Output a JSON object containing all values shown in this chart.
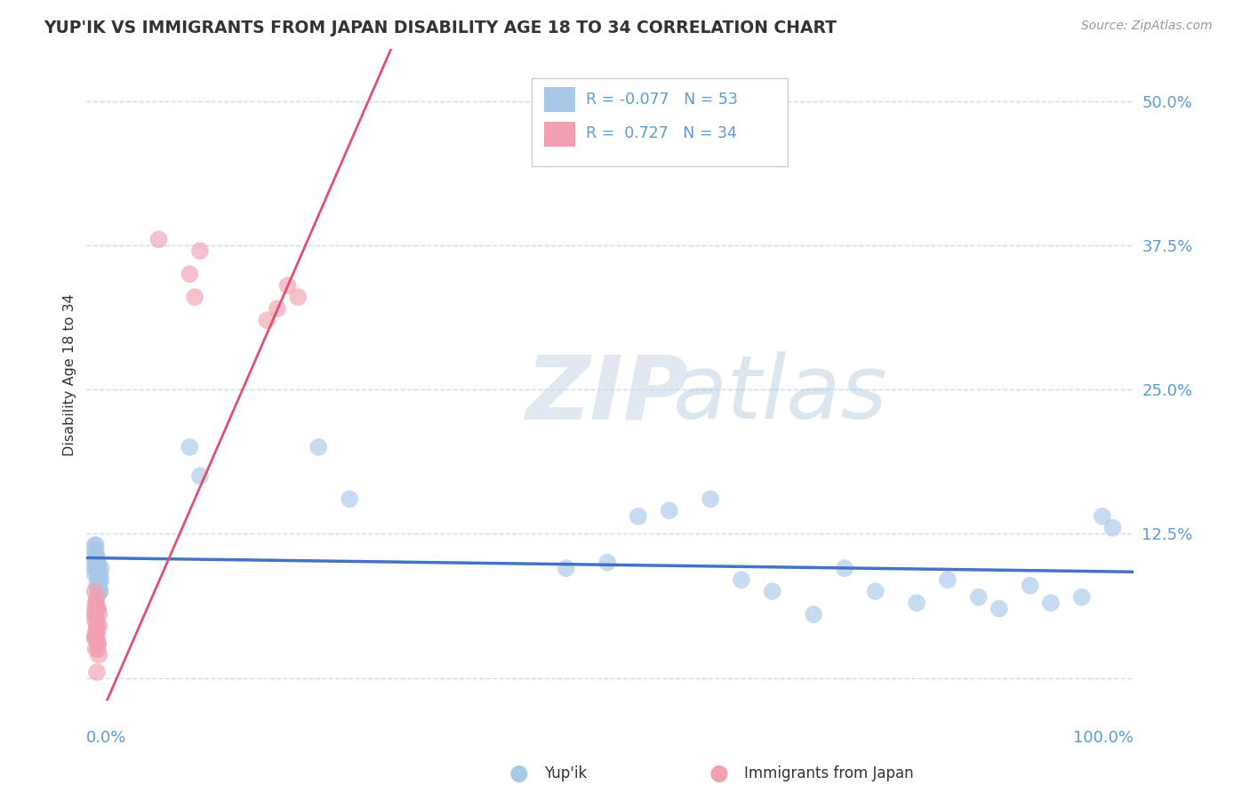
{
  "title": "YUP'IK VS IMMIGRANTS FROM JAPAN DISABILITY AGE 18 TO 34 CORRELATION CHART",
  "source": "Source: ZipAtlas.com",
  "ylabel": "Disability Age 18 to 34",
  "ytick_values": [
    0.0,
    0.125,
    0.25,
    0.375,
    0.5
  ],
  "xlim": [
    -0.005,
    1.01
  ],
  "ylim": [
    -0.02,
    0.545
  ],
  "color_blue": "#a8c8e8",
  "color_pink": "#f0a0b0",
  "line_blue": "#4472c4",
  "line_pink": "#e05070",
  "title_color": "#333333",
  "axis_color": "#5b9bd5",
  "grid_color": "#d0dce8",
  "background_color": "#ffffff",
  "slope_blue": -0.012,
  "intercept_blue": 0.104,
  "slope_pink": 2.05,
  "intercept_pink": -0.05,
  "yupik_x": [
    0.003,
    0.005,
    0.007,
    0.004,
    0.008,
    0.006,
    0.005,
    0.009,
    0.003,
    0.006,
    0.004,
    0.007,
    0.005,
    0.003,
    0.008,
    0.006,
    0.004,
    0.007,
    0.005,
    0.003,
    0.006,
    0.004,
    0.008,
    0.005,
    0.003,
    0.007,
    0.006,
    0.004,
    0.009,
    0.005,
    0.095,
    0.105,
    0.22,
    0.25,
    0.46,
    0.5,
    0.53,
    0.56,
    0.6,
    0.63,
    0.66,
    0.7,
    0.73,
    0.76,
    0.8,
    0.83,
    0.86,
    0.88,
    0.91,
    0.93,
    0.96,
    0.98,
    0.99
  ],
  "yupik_y": [
    0.095,
    0.105,
    0.085,
    0.11,
    0.09,
    0.1,
    0.08,
    0.095,
    0.115,
    0.075,
    0.1,
    0.085,
    0.095,
    0.11,
    0.075,
    0.09,
    0.105,
    0.08,
    0.095,
    0.1,
    0.085,
    0.115,
    0.075,
    0.1,
    0.09,
    0.08,
    0.095,
    0.105,
    0.085,
    0.1,
    0.2,
    0.175,
    0.2,
    0.155,
    0.095,
    0.1,
    0.14,
    0.145,
    0.155,
    0.085,
    0.075,
    0.055,
    0.095,
    0.075,
    0.065,
    0.085,
    0.07,
    0.06,
    0.08,
    0.065,
    0.07,
    0.14,
    0.13
  ],
  "japan_x": [
    0.003,
    0.005,
    0.004,
    0.006,
    0.003,
    0.007,
    0.005,
    0.004,
    0.006,
    0.003,
    0.005,
    0.004,
    0.006,
    0.003,
    0.005,
    0.007,
    0.004,
    0.006,
    0.003,
    0.005,
    0.007,
    0.004,
    0.006,
    0.003,
    0.005,
    0.065,
    0.1,
    0.105,
    0.095,
    0.18,
    0.19,
    0.2,
    0.17,
    0.005
  ],
  "japan_y": [
    0.055,
    0.04,
    0.065,
    0.03,
    0.075,
    0.02,
    0.05,
    0.04,
    0.06,
    0.035,
    0.045,
    0.055,
    0.025,
    0.06,
    0.035,
    0.045,
    0.065,
    0.03,
    0.05,
    0.04,
    0.055,
    0.025,
    0.06,
    0.035,
    0.07,
    0.38,
    0.33,
    0.37,
    0.35,
    0.32,
    0.34,
    0.33,
    0.31,
    0.005
  ]
}
